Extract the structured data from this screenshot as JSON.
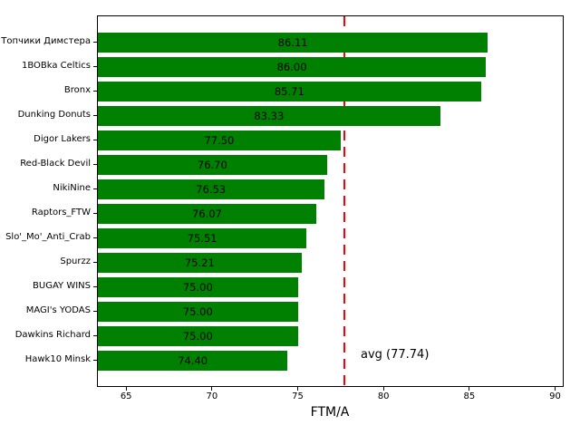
{
  "chart_data": {
    "type": "bar",
    "orientation": "horizontal",
    "title": "",
    "xlabel": "FTM/A",
    "ylabel": "",
    "categories": [
      "Топчики Димстера",
      "1BOBka Celtics",
      "Bronx",
      "Dunking Donuts",
      "Digor Lakers",
      "Red-Black Devil",
      "NikiNine",
      "Raptors_FTW",
      "Slo'_Mo'_Anti_Crab",
      "Spurzz",
      "BUGAY WINS",
      "MAGI's YODAS",
      "Dawkins Richard",
      "Hawk10 Minsk"
    ],
    "values": [
      86.11,
      86.0,
      85.71,
      83.33,
      77.5,
      76.7,
      76.53,
      76.07,
      75.51,
      75.21,
      75.0,
      75.0,
      75.0,
      74.4
    ],
    "value_decimals": 2,
    "xlim": [
      63.3,
      90.5
    ],
    "xticks": [
      65,
      70,
      75,
      80,
      85,
      90
    ],
    "grid": false,
    "legend": null,
    "bar_color": "#008000",
    "avg_line": {
      "value": 77.74,
      "label": "avg (77.74)",
      "color": "#ff0000",
      "style": "dashed"
    }
  }
}
